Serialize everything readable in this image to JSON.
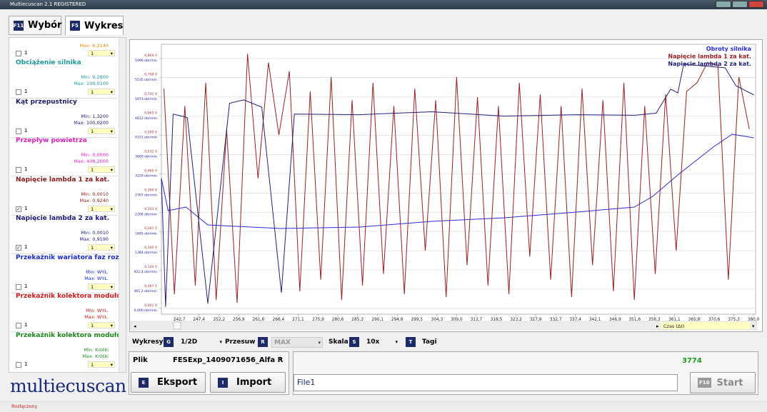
{
  "window": {
    "title": "Multiecuscan 2.1 REGISTERED"
  },
  "tabs": [
    {
      "key": "F11",
      "label": "Wybór"
    },
    {
      "key": "F5",
      "label": "Wykres"
    }
  ],
  "sidebar": {
    "partial": {
      "max": "Max: 6,2140",
      "check": "1",
      "select": "1",
      "color": "#e08a00"
    },
    "items": [
      {
        "name": "Obciążenie silnika",
        "min": "Min: 9,2800",
        "max": "Max: 100,0100",
        "check": "1",
        "select": "1",
        "checked": false,
        "color": "#1a9a9a"
      },
      {
        "name": "Kąt przepustnicy",
        "min": "Min: 1,3200",
        "max": "Max: 100,0200",
        "check": "1",
        "select": "1",
        "checked": false,
        "color": "#1a1a6a"
      },
      {
        "name": "Przepływ powietrza",
        "min": "Min: 0,0000",
        "max": "Max: 408,2000",
        "check": "1",
        "select": "1",
        "checked": false,
        "color": "#e020c0"
      },
      {
        "name": "Napięcie lambda 1 za kat.",
        "min": "Min: 0,0010",
        "max": "Max: 0,9240",
        "check": "1",
        "select": "1",
        "checked": true,
        "color": "#8b1a1a"
      },
      {
        "name": "Napięcie lambda 2 za kat.",
        "min": "Min: 0,0010",
        "max": "Max: 0,9190",
        "check": "1",
        "select": "1",
        "checked": true,
        "color": "#1a1a7a"
      },
      {
        "name": "Przekaźnik wariatora faz rozrz",
        "min": "Min: WYŁ.",
        "max": "Max: WYŁ.",
        "check": "1",
        "select": "1",
        "checked": false,
        "color": "#1a2ad0"
      },
      {
        "name": "Przekaźnik kolektora modułow",
        "min": "Min: WYŁ.",
        "max": "Max: WYŁ.",
        "check": "1",
        "select": "1",
        "checked": false,
        "color": "#d01a1a"
      },
      {
        "name": "Przekaźnik kolektora modułow",
        "min": "Min: Krótki",
        "max": "Max: Krótki",
        "check": "1",
        "select": "1",
        "checked": false,
        "color": "#1a8a1a"
      }
    ]
  },
  "chart_data": {
    "type": "line",
    "xlim": [
      238.4,
      380.5
    ],
    "ylim": [
      -0.019,
      0.913
    ],
    "y2lim": [
      -137,
      6339
    ],
    "grid": true,
    "legend": "upper right",
    "xticks": [
      {
        "value": 242.7,
        "label": "242,7"
      },
      {
        "value": 247.4,
        "label": "247,4"
      },
      {
        "value": 252.2,
        "label": "252,2"
      },
      {
        "value": 256.9,
        "label": "256,9"
      },
      {
        "value": 261.6,
        "label": "261,6"
      },
      {
        "value": 266.4,
        "label": "266,4"
      },
      {
        "value": 271.1,
        "label": "271,1"
      },
      {
        "value": 275.9,
        "label": "275,9"
      },
      {
        "value": 280.6,
        "label": "280,6"
      },
      {
        "value": 285.3,
        "label": "285,3"
      },
      {
        "value": 290.1,
        "label": "290,1"
      },
      {
        "value": 294.8,
        "label": "294,8"
      },
      {
        "value": 299.5,
        "label": "299,5"
      },
      {
        "value": 304.3,
        "label": "304,3"
      },
      {
        "value": 309.0,
        "label": "309,0"
      },
      {
        "value": 313.7,
        "label": "313,7"
      },
      {
        "value": 318.5,
        "label": "318,5"
      },
      {
        "value": 323.2,
        "label": "323,2"
      },
      {
        "value": 327.9,
        "label": "327,9"
      },
      {
        "value": 332.7,
        "label": "332,7"
      },
      {
        "value": 337.4,
        "label": "337,4"
      },
      {
        "value": 342.1,
        "label": "342,1"
      },
      {
        "value": 346.9,
        "label": "346,9"
      },
      {
        "value": 351.6,
        "label": "351,6"
      },
      {
        "value": 356.3,
        "label": "356,3"
      },
      {
        "value": 361.1,
        "label": "361,1"
      },
      {
        "value": 365.8,
        "label": "365,8"
      },
      {
        "value": 370.6,
        "label": "370,6"
      },
      {
        "value": 375.3,
        "label": "375,3"
      },
      {
        "value": 380.0,
        "label": "380,0"
      }
    ],
    "yticks": [
      {
        "value": 0.001,
        "label": "0,001 V"
      },
      {
        "value": 0.067,
        "label": "0,067 V"
      },
      {
        "value": 0.134,
        "label": "0,134 V"
      },
      {
        "value": 0.2,
        "label": "0,200 V"
      },
      {
        "value": 0.267,
        "label": "0,267 V"
      },
      {
        "value": 0.333,
        "label": "0,333 V"
      },
      {
        "value": 0.399,
        "label": "0,399 V"
      },
      {
        "value": 0.466,
        "label": "0,466 V"
      },
      {
        "value": 0.532,
        "label": "0,532 V"
      },
      {
        "value": 0.599,
        "label": "0,599 V"
      },
      {
        "value": 0.665,
        "label": "0,665 V"
      },
      {
        "value": 0.731,
        "label": "0,731 V"
      },
      {
        "value": 0.798,
        "label": "0,798 V"
      },
      {
        "value": 0.864,
        "label": "0,864 V"
      }
    ],
    "y2ticks": [
      {
        "value": 0,
        "label": "0,000 obr/min"
      },
      {
        "value": 461.2,
        "label": "461,2 obr/min"
      },
      {
        "value": 922.4,
        "label": "922,4 obr/min"
      },
      {
        "value": 1384,
        "label": "1384 obr/min"
      },
      {
        "value": 1845,
        "label": "1845 obr/min"
      },
      {
        "value": 2306,
        "label": "2306 obr/min"
      },
      {
        "value": 2767,
        "label": "2767 obr/min"
      },
      {
        "value": 3229,
        "label": "3229 obr/min"
      },
      {
        "value": 3690,
        "label": "3690 obr/min"
      },
      {
        "value": 4151,
        "label": "4151 obr/min"
      },
      {
        "value": 4612,
        "label": "4612 obr/min"
      },
      {
        "value": 5073,
        "label": "5073 obr/min"
      },
      {
        "value": 5535,
        "label": "5535 obr/min"
      },
      {
        "value": 5996,
        "label": "5996 obr/min"
      }
    ],
    "series": [
      {
        "name": "Obroty silnika",
        "color": "#2828e0",
        "axis": "y2",
        "x": [
          238.4,
          240.0,
          244.3,
          249.5,
          266.8,
          285.8,
          303.1,
          320.4,
          337.7,
          351.5,
          355.9,
          361.9,
          370.6,
          374.9,
          380.1
        ],
        "values": [
          3118,
          2347,
          2433,
          2004,
          1919,
          1953,
          2090,
          2176,
          2313,
          2433,
          2690,
          3204,
          3889,
          4180,
          4094
        ]
      },
      {
        "name": "Napięcie lambda 1 za kat.",
        "color": "#9a2020",
        "x": [
          239,
          241.5,
          244,
          246.5,
          249,
          251.5,
          254,
          256.5,
          259,
          261.5,
          264,
          266.5,
          269,
          271.5,
          274,
          276.5,
          279,
          281.5,
          284,
          286.5,
          289,
          291.5,
          294,
          296.5,
          299,
          301.5,
          304,
          306.5,
          309,
          311.5,
          314,
          316.5,
          319,
          321.5,
          324,
          326.5,
          329,
          331.5,
          334,
          336.5,
          339,
          341.5,
          344,
          346.5,
          349,
          351.5,
          354,
          356.5,
          359,
          361.5,
          364,
          366.5,
          369,
          371.5,
          374,
          376.5,
          379
        ],
        "values": [
          0.76,
          0.05,
          0.7,
          0.08,
          0.78,
          0.03,
          0.62,
          0.02,
          0.88,
          0.45,
          0.85,
          0.6,
          0.82,
          0.06,
          0.75,
          0.1,
          0.8,
          0.03,
          0.72,
          0.08,
          0.78,
          0.12,
          0.7,
          0.05,
          0.76,
          0.2,
          0.72,
          0.04,
          0.8,
          0.15,
          0.73,
          0.08,
          0.7,
          0.05,
          0.78,
          0.18,
          0.74,
          0.1,
          0.7,
          0.04,
          0.76,
          0.15,
          0.72,
          0.06,
          0.78,
          0.03,
          0.7,
          0.12,
          0.74,
          0.2,
          0.75,
          0.78,
          0.85,
          0.84,
          0.1,
          0.8,
          0.62
        ]
      },
      {
        "name": "Napięcie lambda 2 za kat.",
        "color": "#20207a",
        "x": [
          238.4,
          239.4,
          241.2,
          244.6,
          249.5,
          254.7,
          258.1,
          262.4,
          267.1,
          270.2,
          285.8,
          303.1,
          320.4,
          337.7,
          351.5,
          356.7,
          360.2,
          361.9,
          363.3,
          373.2,
          375.8,
          380.1
        ],
        "values": [
          0.45,
          0.006,
          0.672,
          0.66,
          0.018,
          0.709,
          0.721,
          0.696,
          0.055,
          0.672,
          0.67,
          0.68,
          0.665,
          0.67,
          0.668,
          0.675,
          0.758,
          0.745,
          0.844,
          0.832,
          0.77,
          0.738
        ]
      }
    ]
  },
  "scroll_label": "Czas (Δt)",
  "controls": [
    {
      "label": "Wykresy",
      "key": "G",
      "value": "1/2D"
    },
    {
      "label": "Przesuw",
      "key": "R",
      "value": "MAX"
    },
    {
      "label": "Skala",
      "key": "S",
      "value": "10x"
    },
    {
      "key": "T",
      "value": "Tagi"
    }
  ],
  "file_panel": {
    "label": "Plik",
    "file": "FESExp_1409071656_Alfa R",
    "buttons": [
      {
        "key": "E",
        "label": "Eksport"
      },
      {
        "key": "I",
        "label": "Import"
      }
    ]
  },
  "right_panel": {
    "counter": "3774",
    "input": "File1",
    "start": {
      "key": "F10",
      "label": "Start"
    }
  },
  "logo": "multiecuscan",
  "status": "Rozłączony"
}
